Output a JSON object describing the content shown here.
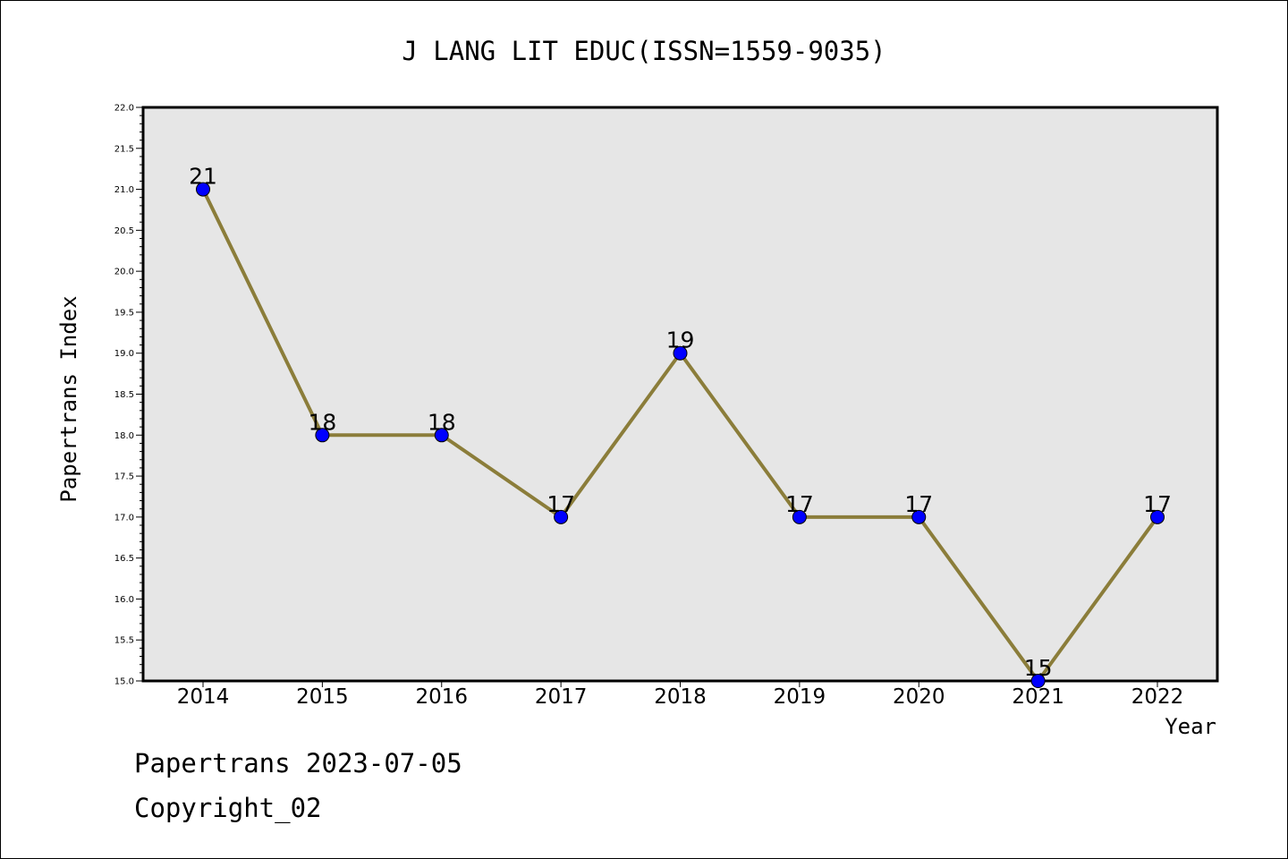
{
  "chart_data": {
    "type": "line",
    "title": "J LANG LIT EDUC(ISSN=1559-9035)",
    "xlabel": "Year",
    "ylabel": "Papertrans Index",
    "categories": [
      "2014",
      "2015",
      "2016",
      "2017",
      "2018",
      "2019",
      "2020",
      "2021",
      "2022"
    ],
    "values": [
      21,
      18,
      18,
      17,
      19,
      17,
      17,
      15,
      17
    ],
    "data_labels": [
      "21",
      "18",
      "18",
      "17",
      "19",
      "17",
      "17",
      "15",
      "17"
    ],
    "ylim": [
      15.0,
      22.0
    ],
    "yticks": [
      "15.0",
      "15.5",
      "16.0",
      "16.5",
      "17.0",
      "17.5",
      "18.0",
      "18.5",
      "19.0",
      "19.5",
      "20.0",
      "20.5",
      "21.0",
      "21.5",
      "22.0"
    ],
    "grid": false,
    "colors": {
      "line": "#8b7d3a",
      "marker": "#0000ff",
      "plot_background": "#e6e6e6"
    }
  },
  "footer": {
    "line1": "Papertrans 2023-07-05",
    "line2": "Copyright_02"
  }
}
